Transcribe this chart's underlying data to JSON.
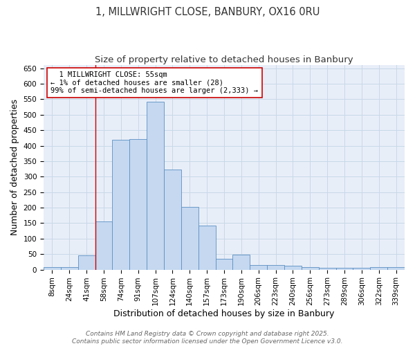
{
  "title_line1": "1, MILLWRIGHT CLOSE, BANBURY, OX16 0RU",
  "title_line2": "Size of property relative to detached houses in Banbury",
  "xlabel": "Distribution of detached houses by size in Banbury",
  "ylabel": "Number of detached properties",
  "categories": [
    "8sqm",
    "24sqm",
    "41sqm",
    "58sqm",
    "74sqm",
    "91sqm",
    "107sqm",
    "124sqm",
    "140sqm",
    "157sqm",
    "173sqm",
    "190sqm",
    "206sqm",
    "223sqm",
    "240sqm",
    "256sqm",
    "273sqm",
    "289sqm",
    "306sqm",
    "322sqm",
    "339sqm"
  ],
  "values": [
    8,
    8,
    45,
    155,
    420,
    422,
    542,
    322,
    202,
    143,
    35,
    48,
    15,
    15,
    12,
    8,
    5,
    6,
    5,
    7,
    7
  ],
  "bar_color": "#c5d8f0",
  "bar_edge_color": "#5a8fc3",
  "red_line_index": 3,
  "annotation_line1": "  1 MILLWRIGHT CLOSE: 55sqm",
  "annotation_line2": "← 1% of detached houses are smaller (28)",
  "annotation_line3": "99% of semi-detached houses are larger (2,333) →",
  "annotation_box_color": "#ffffff",
  "annotation_box_edge": "#cc0000",
  "ylim": [
    0,
    660
  ],
  "yticks": [
    0,
    50,
    100,
    150,
    200,
    250,
    300,
    350,
    400,
    450,
    500,
    550,
    600,
    650
  ],
  "grid_color": "#c8d8e8",
  "background_color": "#e8eef8",
  "footer_text": "Contains HM Land Registry data © Crown copyright and database right 2025.\nContains public sector information licensed under the Open Government Licence v3.0.",
  "title_fontsize": 10.5,
  "subtitle_fontsize": 9.5,
  "axis_label_fontsize": 9,
  "tick_fontsize": 7.5,
  "annotation_fontsize": 7.5,
  "footer_fontsize": 6.5
}
